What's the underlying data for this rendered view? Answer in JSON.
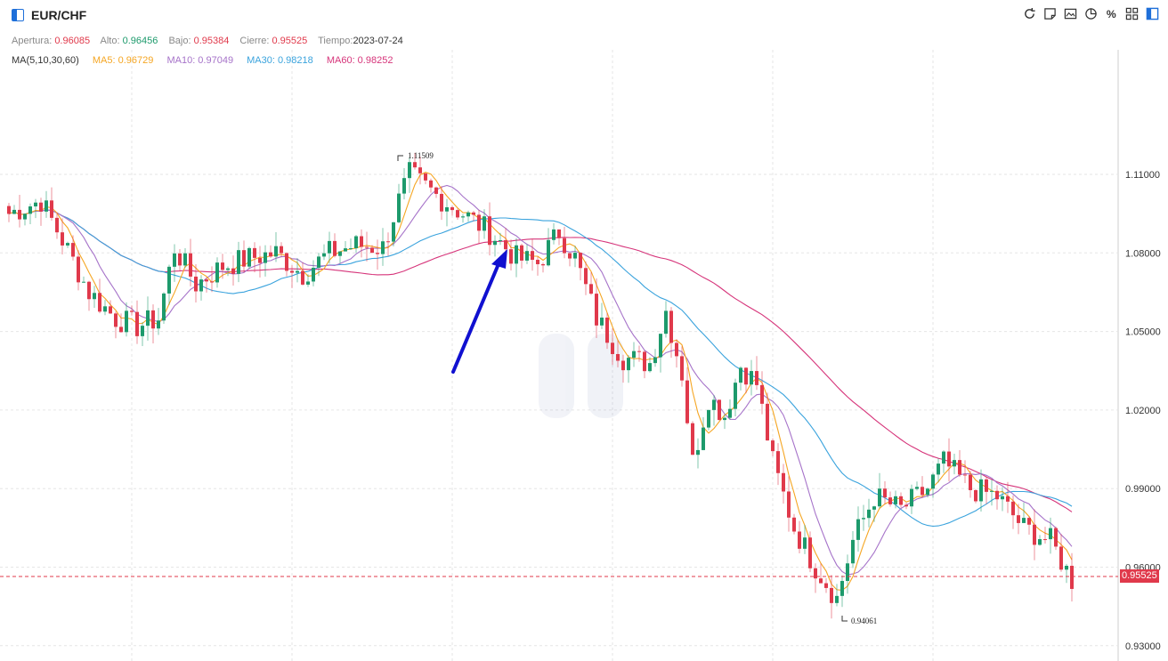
{
  "header": {
    "symbol": "EUR/CHF",
    "tools": [
      "refresh-icon",
      "annotate-icon",
      "image-icon",
      "pie-chart-icon",
      "percent-icon",
      "grid-icon",
      "layout-icon"
    ]
  },
  "ohlc": {
    "open_label": "Apertura:",
    "open": "0.96085",
    "high_label": "Alto:",
    "high": "0.96456",
    "low_label": "Bajo:",
    "low": "0.95384",
    "close_label": "Cierre:",
    "close": "0.95525",
    "time_label": "Tiempo:",
    "time": "2023-07-24"
  },
  "ma_legend": {
    "title": "MA(5,10,30,60)",
    "ma5": "MA5: 0.96729",
    "ma10": "MA10: 0.97049",
    "ma30": "MA30: 0.98218",
    "ma60": "MA60: 0.98252"
  },
  "colors": {
    "up": "#1d9a6c",
    "down": "#e0394b",
    "ma5": "#f5a623",
    "ma10": "#a673c9",
    "ma30": "#3aa3dd",
    "ma60": "#d6347a",
    "arrow": "#1010d0"
  },
  "chart_data": {
    "type": "candlestick",
    "y_axis_ticks": [
      "1.11000",
      "1.08000",
      "1.05000",
      "1.02000",
      "0.99000",
      "0.96000",
      "0.93000"
    ],
    "ylim": [
      0.925,
      1.125
    ],
    "last_price": "0.95525",
    "max_label": "1.11509",
    "min_label": "0.94061",
    "anchors": [
      [
        0,
        1.095
      ],
      [
        6,
        1.1
      ],
      [
        10,
        1.085
      ],
      [
        15,
        1.065
      ],
      [
        20,
        1.055
      ],
      [
        24,
        1.052
      ],
      [
        28,
        1.055
      ],
      [
        31,
        1.082
      ],
      [
        35,
        1.068
      ],
      [
        40,
        1.075
      ],
      [
        45,
        1.078
      ],
      [
        50,
        1.08
      ],
      [
        55,
        1.072
      ],
      [
        60,
        1.08
      ],
      [
        65,
        1.083
      ],
      [
        70,
        1.082
      ],
      [
        73,
        1.1
      ],
      [
        75,
        1.11
      ],
      [
        80,
        1.102
      ],
      [
        85,
        1.095
      ],
      [
        90,
        1.088
      ],
      [
        95,
        1.078
      ],
      [
        99,
        1.076
      ],
      [
        103,
        1.088
      ],
      [
        106,
        1.078
      ],
      [
        110,
        1.055
      ],
      [
        115,
        1.04
      ],
      [
        120,
        1.038
      ],
      [
        123,
        1.058
      ],
      [
        126,
        1.034
      ],
      [
        128,
        1.0
      ],
      [
        131,
        1.025
      ],
      [
        134,
        1.018
      ],
      [
        137,
        1.037
      ],
      [
        140,
        1.03
      ],
      [
        143,
        1.0
      ],
      [
        147,
        0.975
      ],
      [
        151,
        0.96
      ],
      [
        155,
        0.948
      ],
      [
        158,
        0.97
      ],
      [
        162,
        0.987
      ],
      [
        167,
        0.982
      ],
      [
        172,
        0.99
      ],
      [
        175,
        1.0
      ],
      [
        180,
        0.99
      ],
      [
        185,
        0.987
      ],
      [
        190,
        0.975
      ],
      [
        195,
        0.97
      ],
      [
        199,
        0.955
      ]
    ],
    "candle_count": 200
  }
}
